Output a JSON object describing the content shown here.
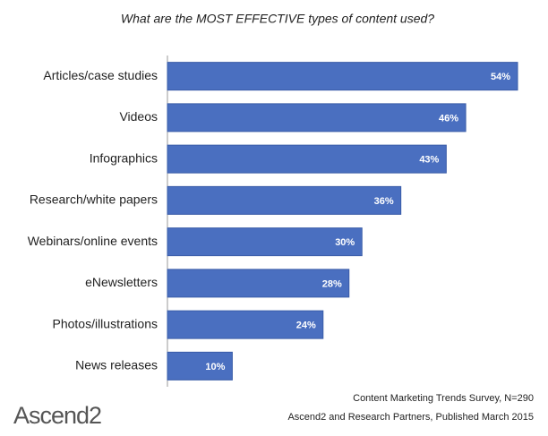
{
  "chart_data": {
    "type": "bar",
    "orientation": "horizontal",
    "title": "What are the MOST EFFECTIVE types of content used?",
    "categories": [
      "Articles/case studies",
      "Videos",
      "Infographics",
      "Research/white papers",
      "Webinars/online events",
      "eNewsletters",
      "Photos/illustrations",
      "News releases"
    ],
    "values": [
      54,
      46,
      43,
      36,
      30,
      28,
      24,
      10
    ],
    "value_labels": [
      "54%",
      "46%",
      "43%",
      "36%",
      "30%",
      "28%",
      "24%",
      "10%"
    ],
    "color": "#4a6fc0",
    "source": [
      "Content Marketing Trends Survey, N=290",
      "Ascend2 and Research Partners, Published March 2015"
    ],
    "logo": "Ascend2"
  }
}
